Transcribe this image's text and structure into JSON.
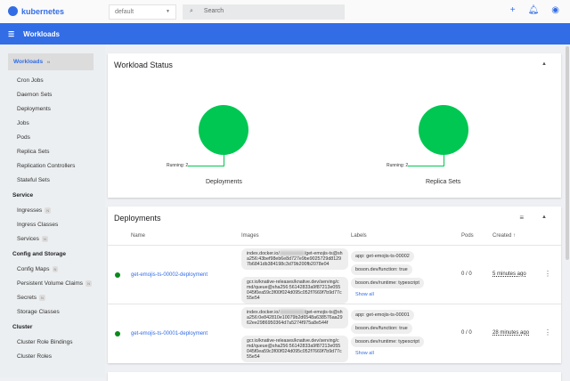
{
  "header": {
    "brand": "kubernetes",
    "namespace": "default",
    "search_placeholder": "Search",
    "icons": [
      "plus-icon",
      "bell-icon",
      "account-icon"
    ]
  },
  "toolbar": {
    "title": "Workloads"
  },
  "sidebar": {
    "workloads": {
      "label": "Workloads",
      "badge": "N"
    },
    "workload_items": [
      "Cron Jobs",
      "Daemon Sets",
      "Deployments",
      "Jobs",
      "Pods",
      "Replica Sets",
      "Replication Controllers",
      "Stateful Sets"
    ],
    "service": {
      "label": "Service",
      "items": [
        {
          "label": "Ingresses",
          "badge": "N"
        },
        {
          "label": "Ingress Classes"
        },
        {
          "label": "Services",
          "badge": "N"
        }
      ]
    },
    "config": {
      "label": "Config and Storage",
      "items": [
        {
          "label": "Config Maps",
          "badge": "N"
        },
        {
          "label": "Persistent Volume Claims",
          "badge": "N"
        },
        {
          "label": "Secrets",
          "badge": "N"
        },
        {
          "label": "Storage Classes"
        }
      ]
    },
    "cluster": {
      "label": "Cluster",
      "items": [
        {
          "label": "Cluster Role Bindings"
        },
        {
          "label": "Cluster Roles"
        }
      ]
    }
  },
  "status": {
    "title": "Workload Status",
    "charts": [
      {
        "label": "Deployments",
        "legend": "Running: 2",
        "running": 2
      },
      {
        "label": "Replica Sets",
        "legend": "Running: 2",
        "running": 2
      }
    ],
    "color": "#00c752"
  },
  "deployments": {
    "title": "Deployments",
    "columns": [
      "Name",
      "Images",
      "Labels",
      "Pods",
      "Created ↑"
    ],
    "rows": [
      {
        "name": "get-emojis-ts-00002-deployment",
        "image1_pre": "index.docker.io/",
        "image1_post": "/get-emojis-ts@sha256:43bef98eb6e8d727e9be9025729d81297b6841db384198c3d79b200fb2078e04",
        "image2": "gcr.io/knative-releases/knative.dev/serving/cmd/queue@sha256:56142833a9f87213e055045f0ea59c3f00f024d095c052f7669f7b9d77c55e54",
        "labels": [
          "app: get-emojis-ts-00002",
          "boson.dev/function: true",
          "boson.dev/runtime: typescript"
        ],
        "show_all": "Show all",
        "pods": "0 / 0",
        "created": "5 minutes ago"
      },
      {
        "name": "get-emojis-ts-00001-deployment",
        "image1_pre": "index.docker.io/",
        "image1_post": "/get-emojis-ts@sha256:0e842810e10079b2d6548a638576aa2962ee2986950364d7a5274f975a8e544f",
        "image2": "gcr.io/knative-releases/knative.dev/serving/cmd/queue@sha256:56142833a9f87213e055045f0ea59c3f00f024d095c052f7669f7b9d77c55e54",
        "labels": [
          "app: get-emojis-ts-00001",
          "boson.dev/function: true",
          "boson.dev/runtime: typescript"
        ],
        "show_all": "Show all",
        "pods": "0 / 0",
        "created": "28 minutes ago"
      }
    ]
  }
}
